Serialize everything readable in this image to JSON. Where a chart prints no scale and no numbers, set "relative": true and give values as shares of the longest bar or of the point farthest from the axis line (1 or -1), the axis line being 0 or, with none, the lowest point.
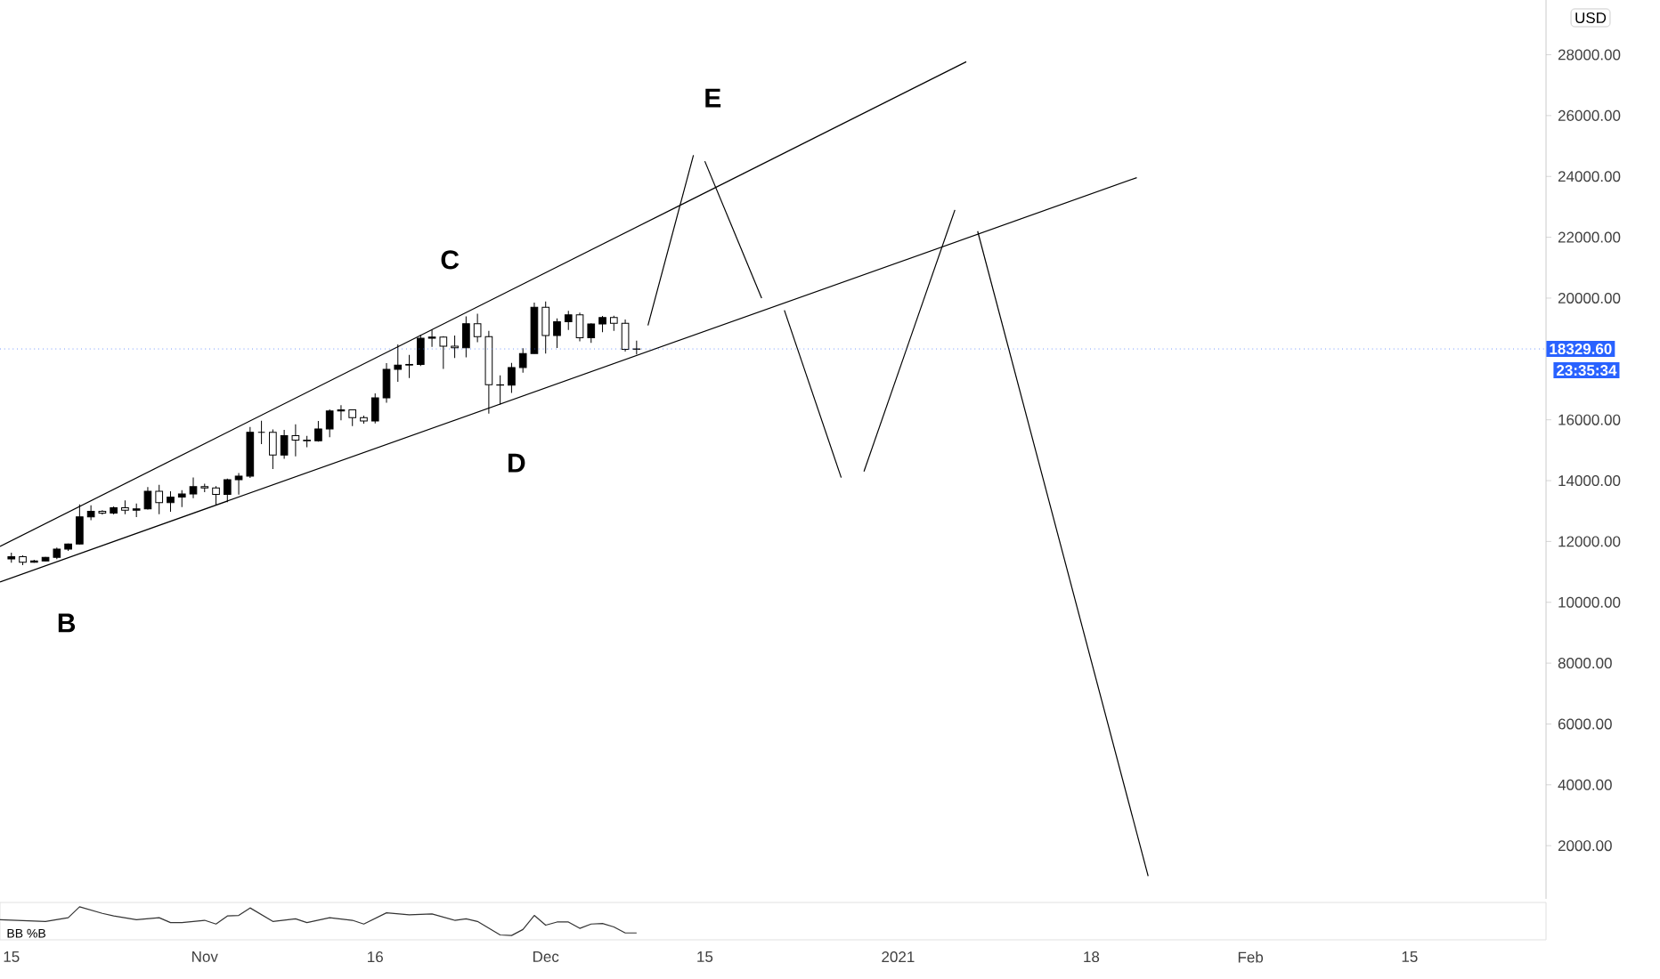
{
  "chart_data": [
    {
      "type": "candlestick",
      "ylabel": "USD",
      "color": "#000000",
      "tick_labels": "y",
      "xlim": [
        "2020-10-14",
        "2021-02-27"
      ],
      "ylim": [
        250,
        29800
      ],
      "yticks": [
        {
          "value": 2000,
          "label": "2000.00"
        },
        {
          "value": 4000,
          "label": "4000.00"
        },
        {
          "value": 6000,
          "label": "6000.00"
        },
        {
          "value": 8000,
          "label": "8000.00"
        },
        {
          "value": 10000,
          "label": "10000.00"
        },
        {
          "value": 12000,
          "label": "12000.00"
        },
        {
          "value": 14000,
          "label": "14000.00"
        },
        {
          "value": 16000,
          "label": "16000.00"
        },
        {
          "value": 20000,
          "label": "20000.00"
        },
        {
          "value": 22000,
          "label": "22000.00"
        },
        {
          "value": 24000,
          "label": "24000.00"
        },
        {
          "value": 26000,
          "label": "26000.00"
        },
        {
          "value": 28000,
          "label": "28000.00"
        }
      ],
      "x": [
        "2020-10-15",
        "2020-10-16",
        "2020-10-17",
        "2020-10-18",
        "2020-10-19",
        "2020-10-20",
        "2020-10-21",
        "2020-10-22",
        "2020-10-23",
        "2020-10-24",
        "2020-10-25",
        "2020-10-26",
        "2020-10-27",
        "2020-10-28",
        "2020-10-29",
        "2020-10-30",
        "2020-10-31",
        "2020-11-01",
        "2020-11-02",
        "2020-11-03",
        "2020-11-04",
        "2020-11-05",
        "2020-11-06",
        "2020-11-07",
        "2020-11-08",
        "2020-11-09",
        "2020-11-10",
        "2020-11-11",
        "2020-11-12",
        "2020-11-13",
        "2020-11-14",
        "2020-11-15",
        "2020-11-16",
        "2020-11-17",
        "2020-11-18",
        "2020-11-19",
        "2020-11-20",
        "2020-11-21",
        "2020-11-22",
        "2020-11-23",
        "2020-11-24",
        "2020-11-25",
        "2020-11-26",
        "2020-11-27",
        "2020-11-28",
        "2020-11-29",
        "2020-11-30",
        "2020-12-01",
        "2020-12-02",
        "2020-12-03",
        "2020-12-04",
        "2020-12-05",
        "2020-12-06",
        "2020-12-07",
        "2020-12-08",
        "2020-12-09"
      ],
      "ohlc": [
        [
          11425,
          11630,
          11300,
          11500
        ],
        [
          11500,
          11540,
          11220,
          11320
        ],
        [
          11320,
          11400,
          11300,
          11360
        ],
        [
          11360,
          11490,
          11350,
          11480
        ],
        [
          11480,
          11800,
          11420,
          11750
        ],
        [
          11750,
          11930,
          11690,
          11920
        ],
        [
          11920,
          13220,
          11900,
          12810
        ],
        [
          12810,
          13190,
          12700,
          12990
        ],
        [
          12990,
          13030,
          12880,
          12930
        ],
        [
          12930,
          13150,
          12890,
          13110
        ],
        [
          13110,
          13350,
          12900,
          13030
        ],
        [
          13030,
          13250,
          12800,
          13070
        ],
        [
          13070,
          13790,
          13050,
          13650
        ],
        [
          13650,
          13860,
          12900,
          13280
        ],
        [
          13280,
          13650,
          12980,
          13460
        ],
        [
          13460,
          13690,
          13130,
          13560
        ],
        [
          13560,
          14100,
          13420,
          13800
        ],
        [
          13800,
          13900,
          13620,
          13760
        ],
        [
          13760,
          13820,
          13200,
          13550
        ],
        [
          13550,
          14070,
          13290,
          14030
        ],
        [
          14030,
          14250,
          13540,
          14150
        ],
        [
          14150,
          15760,
          14090,
          15590
        ],
        [
          15590,
          15970,
          15200,
          15590
        ],
        [
          15590,
          15680,
          14380,
          14840
        ],
        [
          14840,
          15670,
          14720,
          15480
        ],
        [
          15480,
          15850,
          14800,
          15330
        ],
        [
          15330,
          15470,
          15100,
          15310
        ],
        [
          15310,
          15960,
          15280,
          15700
        ],
        [
          15700,
          16340,
          15430,
          16290
        ],
        [
          16290,
          16480,
          15980,
          16330
        ],
        [
          16330,
          16330,
          15790,
          16070
        ],
        [
          16070,
          16140,
          15870,
          15960
        ],
        [
          15960,
          16870,
          15880,
          16720
        ],
        [
          16720,
          17860,
          16560,
          17660
        ],
        [
          17660,
          18480,
          17250,
          17800
        ],
        [
          17800,
          18130,
          17370,
          17820
        ],
        [
          17820,
          18800,
          17770,
          18680
        ],
        [
          18680,
          18960,
          18400,
          18720
        ],
        [
          18720,
          18750,
          17670,
          18420
        ],
        [
          18420,
          18770,
          18030,
          18370
        ],
        [
          18370,
          19400,
          18050,
          19160
        ],
        [
          19160,
          19490,
          18550,
          18730
        ],
        [
          18730,
          18920,
          16200,
          17150
        ],
        [
          17150,
          17460,
          16500,
          17140
        ],
        [
          17140,
          17870,
          16880,
          17720
        ],
        [
          17720,
          18350,
          17550,
          18180
        ],
        [
          18180,
          19850,
          18180,
          19700
        ],
        [
          19700,
          19890,
          18180,
          18770
        ],
        [
          18770,
          19330,
          18360,
          19220
        ],
        [
          19220,
          19580,
          18950,
          19450
        ],
        [
          19450,
          19520,
          18580,
          18700
        ],
        [
          18700,
          19170,
          18530,
          19150
        ],
        [
          19150,
          19410,
          18880,
          19360
        ],
        [
          19360,
          19420,
          18920,
          19170
        ],
        [
          19170,
          19300,
          18240,
          18320
        ],
        [
          18320,
          18600,
          18150,
          18329.6
        ]
      ],
      "series": [
        {
          "type": "line",
          "color": "#000000",
          "x": [
            "2020-10-14",
            "2021-01-07"
          ],
          "values": [
            11840,
            27770
          ]
        },
        {
          "type": "line",
          "color": "#000000",
          "x": [
            "2020-10-14",
            "2021-01-22"
          ],
          "values": [
            10670,
            23960
          ]
        },
        {
          "type": "line",
          "color": "#000000",
          "x": [
            "2020-12-10",
            "2020-12-14"
          ],
          "values": [
            19100,
            24700
          ]
        },
        {
          "type": "line",
          "color": "#000000",
          "x": [
            "2020-12-15",
            "2020-12-20"
          ],
          "values": [
            24500,
            20000
          ]
        },
        {
          "type": "line",
          "color": "#000000",
          "x": [
            "2020-12-22",
            "2020-12-27"
          ],
          "values": [
            19600,
            14100
          ]
        },
        {
          "type": "line",
          "color": "#000000",
          "x": [
            "2020-12-29",
            "2021-01-06"
          ],
          "values": [
            14300,
            22900
          ]
        },
        {
          "type": "line",
          "color": "#000000",
          "x": [
            "2021-01-08",
            "2021-01-23"
          ],
          "values": [
            22200,
            1000
          ]
        }
      ],
      "ref_lines": [
        {
          "axis": "y",
          "value": 18329.6,
          "label": "18329.60",
          "color": "#2962ff",
          "line_style": "dotted"
        }
      ],
      "annotations": [
        "B",
        "C",
        "D",
        "E",
        "23:35:34"
      ]
    },
    {
      "type": "line",
      "title": "BB %B",
      "relative": true,
      "tick_labels": "x",
      "xlim": [
        "2020-10-14",
        "2021-02-27"
      ],
      "xticks": [
        {
          "value": "2020-10-15",
          "label": "15"
        },
        {
          "value": "2020-11-01",
          "label": "Nov"
        },
        {
          "value": "2020-11-16",
          "label": "16"
        },
        {
          "value": "2020-12-01",
          "label": "Dec"
        },
        {
          "value": "2020-12-15",
          "label": "15"
        },
        {
          "value": "2021-01-01",
          "label": "2021"
        },
        {
          "value": "2021-01-18",
          "label": "18"
        },
        {
          "value": "2021-02-01",
          "label": "Feb"
        },
        {
          "value": "2021-02-15",
          "label": "15"
        }
      ],
      "series": [
        {
          "color": "#333333",
          "x": [
            "2020-10-14",
            "2020-10-18",
            "2020-10-20",
            "2020-10-21",
            "2020-10-23",
            "2020-10-24",
            "2020-10-26",
            "2020-10-28",
            "2020-10-29",
            "2020-10-30",
            "2020-11-01",
            "2020-11-02",
            "2020-11-03",
            "2020-11-04",
            "2020-11-05",
            "2020-11-07",
            "2020-11-09",
            "2020-11-10",
            "2020-11-12",
            "2020-11-14",
            "2020-11-15",
            "2020-11-17",
            "2020-11-19",
            "2020-11-21",
            "2020-11-23",
            "2020-11-24",
            "2020-11-25",
            "2020-11-27",
            "2020-11-28",
            "2020-11-29",
            "2020-11-30",
            "2020-12-01",
            "2020-12-02",
            "2020-12-03",
            "2020-12-04",
            "2020-12-05",
            "2020-12-06",
            "2020-12-07",
            "2020-12-08",
            "2020-12-09"
          ],
          "values": [
            0.55,
            0.49,
            0.62,
            1.0,
            0.77,
            0.68,
            0.55,
            0.62,
            0.45,
            0.45,
            0.53,
            0.4,
            0.68,
            0.7,
            0.96,
            0.49,
            0.58,
            0.45,
            0.62,
            0.53,
            0.4,
            0.79,
            0.72,
            0.75,
            0.53,
            0.58,
            0.49,
            0.02,
            0.0,
            0.21,
            0.7,
            0.36,
            0.47,
            0.47,
            0.25,
            0.4,
            0.42,
            0.3,
            0.09,
            0.09
          ]
        }
      ]
    }
  ]
}
